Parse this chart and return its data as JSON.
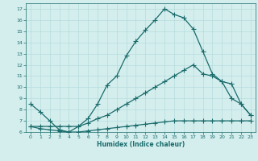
{
  "xlabel": "Humidex (Indice chaleur)",
  "bg_color": "#d4eeee",
  "grid_color": "#b0d8d8",
  "line_color": "#1a6b6b",
  "xlim": [
    -0.5,
    23.5
  ],
  "ylim": [
    6,
    17.5
  ],
  "xticks": [
    0,
    1,
    2,
    3,
    4,
    5,
    6,
    7,
    8,
    9,
    10,
    11,
    12,
    13,
    14,
    15,
    16,
    17,
    18,
    19,
    20,
    21,
    22,
    23
  ],
  "yticks": [
    6,
    7,
    8,
    9,
    10,
    11,
    12,
    13,
    14,
    15,
    16,
    17
  ],
  "line1_x": [
    0,
    1,
    2,
    3,
    4,
    5,
    6,
    7,
    8,
    9,
    10,
    11,
    12,
    13,
    14,
    15,
    16,
    17,
    18,
    19,
    20,
    21,
    22,
    23
  ],
  "line1_y": [
    8.5,
    7.8,
    7.0,
    6.2,
    6.0,
    6.5,
    7.2,
    8.5,
    10.2,
    11.0,
    12.8,
    14.1,
    15.1,
    16.0,
    17.0,
    16.5,
    16.2,
    15.2,
    13.2,
    11.2,
    10.5,
    10.3,
    8.5,
    7.5
  ],
  "line2_x": [
    0,
    1,
    2,
    3,
    4,
    5,
    6,
    7,
    8,
    9,
    10,
    11,
    12,
    13,
    14,
    15,
    16,
    17,
    18,
    19,
    20,
    21,
    22,
    23
  ],
  "line2_y": [
    6.5,
    6.5,
    6.5,
    6.5,
    6.5,
    6.5,
    6.8,
    7.2,
    7.5,
    8.0,
    8.5,
    9.0,
    9.5,
    10.0,
    10.5,
    11.0,
    11.5,
    12.0,
    11.2,
    11.0,
    10.5,
    9.0,
    8.5,
    7.5
  ],
  "line3_x": [
    0,
    1,
    2,
    3,
    4,
    5,
    6,
    7,
    8,
    9,
    10,
    11,
    12,
    13,
    14,
    15,
    16,
    17,
    18,
    19,
    20,
    21,
    22,
    23
  ],
  "line3_y": [
    6.5,
    6.3,
    6.2,
    6.1,
    6.0,
    6.0,
    6.1,
    6.2,
    6.3,
    6.4,
    6.5,
    6.6,
    6.7,
    6.8,
    6.9,
    7.0,
    7.0,
    7.0,
    7.0,
    7.0,
    7.0,
    7.0,
    7.0,
    7.0
  ],
  "marker": "+",
  "markersize": 4,
  "linewidth": 0.9
}
